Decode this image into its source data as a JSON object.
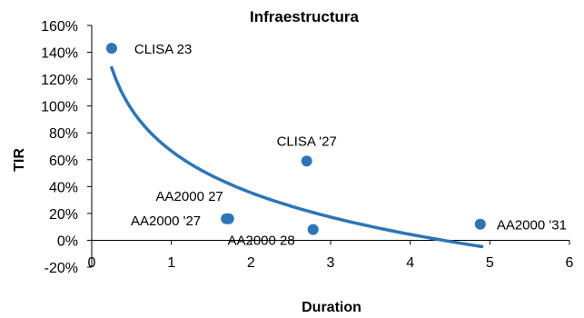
{
  "chart_data": {
    "type": "scatter",
    "title": "Infraestructura",
    "xlabel": "Duration",
    "ylabel": "TIR",
    "xlim": [
      0,
      6
    ],
    "ylim": [
      -20,
      160
    ],
    "x_ticks": [
      0,
      1,
      2,
      3,
      4,
      5,
      6
    ],
    "y_ticks": [
      -20,
      0,
      20,
      40,
      60,
      80,
      100,
      120,
      140,
      160
    ],
    "y_tick_labels": [
      "-20%",
      "0%",
      "20%",
      "40%",
      "60%",
      "80%",
      "100%",
      "120%",
      "140%",
      "160%"
    ],
    "grid": false,
    "legend": "none",
    "point_color": "#2E75B6",
    "trendline_color": "#2E75B6",
    "points": [
      {
        "label": "CLISA 23",
        "x": 0.25,
        "y": 143
      },
      {
        "label": "CLISA '27",
        "x": 2.7,
        "y": 59
      },
      {
        "label": "AA2000 27",
        "x": 1.72,
        "y": 16
      },
      {
        "label": "AA2000 '27",
        "x": 1.69,
        "y": 16
      },
      {
        "label": "AA2000 28",
        "x": 2.78,
        "y": 8
      },
      {
        "label": "AA2000 '31",
        "x": 4.88,
        "y": 12
      }
    ],
    "trendline": {
      "type": "logarithmic",
      "x_range": [
        0.25,
        4.9
      ],
      "a": 66.5,
      "b": -44.8
    }
  }
}
